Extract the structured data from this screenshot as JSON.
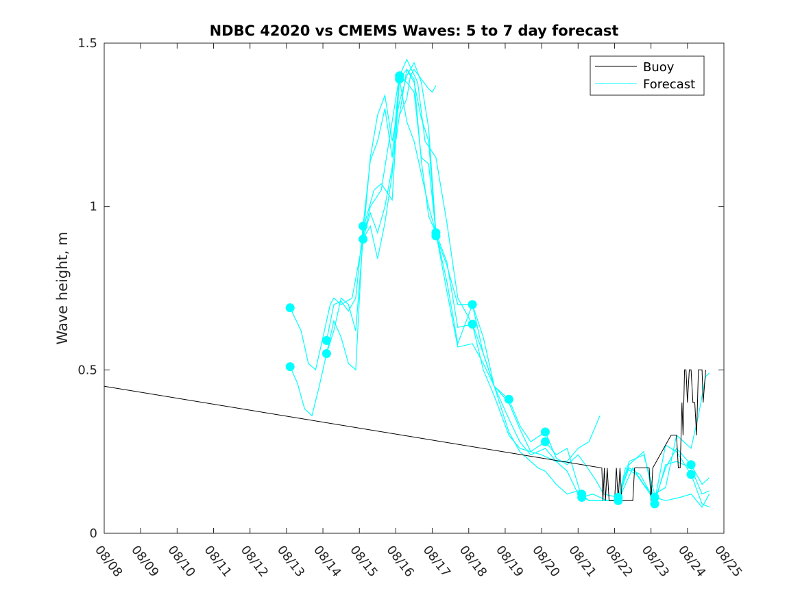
{
  "chart_data": {
    "type": "line",
    "title": "NDBC 42020 vs CMEMS Waves: 5 to 7 day forecast",
    "xlabel": "",
    "ylabel": "Wave height, m",
    "xlim": [
      0,
      17
    ],
    "ylim": [
      0,
      1.5
    ],
    "grid": false,
    "legend_location": "top-right",
    "x_tick_labels": [
      "08/08",
      "08/09",
      "08/10",
      "08/11",
      "08/12",
      "08/13",
      "08/14",
      "08/15",
      "08/16",
      "08/17",
      "08/18",
      "08/19",
      "08/20",
      "08/21",
      "08/22",
      "08/23",
      "08/24",
      "08/25"
    ],
    "y_ticks": [
      0,
      0.5,
      1,
      1.5
    ],
    "y_tick_labels": [
      "0",
      "0.5",
      "1",
      "1.5"
    ],
    "legend": [
      {
        "label": "Buoy",
        "color": "#000000"
      },
      {
        "label": "Forecast",
        "color": "#00ffff"
      }
    ],
    "buoy": {
      "name": "Buoy",
      "color": "#000000",
      "points": [
        [
          0,
          0.45
        ],
        [
          13.65,
          0.2
        ],
        [
          13.68,
          0.1
        ],
        [
          13.72,
          0.2
        ],
        [
          13.75,
          0.1
        ],
        [
          13.8,
          0.2
        ],
        [
          13.85,
          0.1
        ],
        [
          14.0,
          0.1
        ],
        [
          14.05,
          0.2
        ],
        [
          14.1,
          0.1
        ],
        [
          14.15,
          0.2
        ],
        [
          14.2,
          0.1
        ],
        [
          14.5,
          0.1
        ],
        [
          14.55,
          0.2
        ],
        [
          14.95,
          0.2
        ],
        [
          15.0,
          0.1
        ],
        [
          15.05,
          0.2
        ],
        [
          15.55,
          0.3
        ],
        [
          15.7,
          0.3
        ],
        [
          15.75,
          0.2
        ],
        [
          15.8,
          0.2
        ],
        [
          15.85,
          0.4
        ],
        [
          15.88,
          0.3
        ],
        [
          15.92,
          0.5
        ],
        [
          15.96,
          0.5
        ],
        [
          16.0,
          0.4
        ],
        [
          16.05,
          0.5
        ],
        [
          16.1,
          0.5
        ],
        [
          16.15,
          0.4
        ],
        [
          16.2,
          0.4
        ],
        [
          16.25,
          0.3
        ],
        [
          16.3,
          0.5
        ],
        [
          16.4,
          0.5
        ],
        [
          16.43,
          0.4
        ],
        [
          16.5,
          0.5
        ]
      ]
    },
    "forecast": {
      "name": "Forecast",
      "color": "#00ffff",
      "series": [
        {
          "name": "Forecast run 1",
          "points": [
            [
              5.1,
              0.69
            ],
            [
              5.4,
              0.62
            ],
            [
              5.6,
              0.52
            ],
            [
              5.8,
              0.5
            ],
            [
              6.0,
              0.6
            ],
            [
              6.2,
              0.7
            ],
            [
              6.3,
              0.72
            ],
            [
              6.5,
              0.7
            ],
            [
              6.8,
              0.72
            ],
            [
              7.1,
              0.9
            ],
            [
              7.3,
              1.0
            ],
            [
              7.6,
              1.05
            ],
            [
              8.1,
              1.4
            ],
            [
              8.3,
              1.45
            ],
            [
              8.6,
              1.38
            ],
            [
              8.8,
              1.2
            ],
            [
              9.1,
              1.15
            ],
            [
              9.4,
              0.95
            ],
            [
              9.7,
              0.72
            ],
            [
              10.1,
              0.64
            ],
            [
              10.4,
              0.5
            ],
            [
              10.7,
              0.42
            ],
            [
              11.1,
              0.3
            ],
            [
              11.4,
              0.26
            ],
            [
              11.7,
              0.25
            ],
            [
              12.0,
              0.24
            ],
            [
              12.4,
              0.22
            ],
            [
              12.7,
              0.22
            ],
            [
              13.0,
              0.26
            ],
            [
              13.3,
              0.28
            ],
            [
              13.6,
              0.36
            ]
          ]
        },
        {
          "name": "Forecast run 2",
          "points": [
            [
              5.1,
              0.51
            ],
            [
              5.3,
              0.46
            ],
            [
              5.5,
              0.38
            ],
            [
              5.7,
              0.36
            ],
            [
              5.9,
              0.45
            ],
            [
              6.1,
              0.55
            ],
            [
              6.3,
              0.65
            ],
            [
              6.5,
              0.6
            ],
            [
              6.7,
              0.52
            ],
            [
              6.9,
              0.5
            ],
            [
              7.1,
              0.93
            ],
            [
              7.4,
              1.05
            ],
            [
              7.6,
              1.07
            ],
            [
              7.9,
              1.02
            ],
            [
              8.1,
              1.39
            ],
            [
              8.3,
              1.42
            ],
            [
              8.5,
              1.38
            ],
            [
              8.7,
              1.27
            ],
            [
              8.9,
              1.2
            ],
            [
              9.1,
              0.91
            ],
            [
              9.4,
              0.82
            ],
            [
              9.7,
              0.7
            ],
            [
              10.1,
              0.7
            ],
            [
              10.4,
              0.55
            ],
            [
              10.7,
              0.45
            ],
            [
              11.1,
              0.31
            ],
            [
              11.4,
              0.25
            ],
            [
              11.7,
              0.22
            ],
            [
              11.9,
              0.2
            ],
            [
              12.1,
              0.19
            ],
            [
              12.4,
              0.15
            ],
            [
              12.7,
              0.12
            ],
            [
              13.0,
              0.13
            ],
            [
              13.3,
              0.1
            ],
            [
              13.7,
              0.1
            ],
            [
              14.1,
              0.1
            ],
            [
              14.5,
              0.2
            ],
            [
              14.8,
              0.15
            ],
            [
              15.1,
              0.11
            ],
            [
              15.4,
              0.1
            ],
            [
              15.8,
              0.11
            ],
            [
              16.1,
              0.12
            ],
            [
              16.4,
              0.08
            ],
            [
              16.6,
              0.12
            ]
          ]
        },
        {
          "name": "Forecast run 3",
          "points": [
            [
              6.1,
              0.59
            ],
            [
              6.3,
              0.7
            ],
            [
              6.5,
              0.71
            ],
            [
              6.7,
              0.68
            ],
            [
              6.9,
              0.72
            ],
            [
              7.1,
              0.94
            ],
            [
              7.3,
              1.14
            ],
            [
              7.5,
              1.2
            ],
            [
              7.7,
              1.3
            ],
            [
              7.9,
              1.15
            ],
            [
              8.1,
              1.4
            ],
            [
              8.3,
              1.38
            ],
            [
              8.5,
              1.35
            ],
            [
              8.7,
              1.15
            ],
            [
              8.9,
              1.13
            ],
            [
              9.1,
              0.92
            ],
            [
              9.4,
              0.77
            ],
            [
              9.7,
              0.58
            ],
            [
              10.1,
              0.7
            ],
            [
              10.4,
              0.6
            ],
            [
              10.7,
              0.45
            ],
            [
              11.1,
              0.41
            ],
            [
              11.4,
              0.33
            ],
            [
              11.7,
              0.28
            ],
            [
              12.1,
              0.31
            ],
            [
              12.4,
              0.23
            ],
            [
              12.7,
              0.21
            ],
            [
              13.0,
              0.24
            ],
            [
              13.2,
              0.21
            ],
            [
              13.5,
              0.16
            ],
            [
              13.7,
              0.12
            ],
            [
              14.1,
              0.11
            ],
            [
              14.4,
              0.2
            ],
            [
              14.7,
              0.18
            ],
            [
              15.1,
              0.1
            ],
            [
              15.4,
              0.2
            ],
            [
              15.7,
              0.26
            ],
            [
              16.1,
              0.21
            ],
            [
              16.4,
              0.15
            ],
            [
              16.6,
              0.17
            ]
          ]
        },
        {
          "name": "Forecast run 4",
          "points": [
            [
              6.1,
              0.55
            ],
            [
              6.3,
              0.62
            ],
            [
              6.5,
              0.72
            ],
            [
              6.7,
              0.7
            ],
            [
              6.9,
              0.62
            ],
            [
              7.1,
              0.9
            ],
            [
              7.3,
              0.98
            ],
            [
              7.5,
              0.92
            ],
            [
              7.7,
              1.0
            ],
            [
              7.9,
              1.12
            ],
            [
              8.1,
              1.28
            ],
            [
              8.3,
              1.42
            ],
            [
              8.5,
              1.39
            ],
            [
              8.7,
              1.14
            ],
            [
              8.9,
              0.97
            ],
            [
              9.1,
              0.92
            ],
            [
              9.4,
              0.83
            ],
            [
              9.7,
              0.63
            ],
            [
              10.1,
              0.64
            ],
            [
              10.4,
              0.55
            ],
            [
              10.7,
              0.45
            ],
            [
              11.1,
              0.35
            ],
            [
              11.4,
              0.28
            ],
            [
              11.7,
              0.24
            ],
            [
              12.1,
              0.26
            ],
            [
              12.4,
              0.22
            ],
            [
              12.7,
              0.19
            ],
            [
              13.0,
              0.12
            ],
            [
              13.3,
              0.1
            ],
            [
              13.7,
              0.1
            ],
            [
              14.1,
              0.1
            ],
            [
              14.3,
              0.2
            ],
            [
              14.6,
              0.18
            ],
            [
              15.1,
              0.1
            ],
            [
              15.4,
              0.27
            ],
            [
              15.7,
              0.25
            ],
            [
              16.1,
              0.18
            ],
            [
              16.4,
              0.09
            ],
            [
              16.6,
              0.08
            ]
          ]
        },
        {
          "name": "Forecast run 5",
          "points": [
            [
              7.1,
              0.9
            ],
            [
              7.3,
              0.94
            ],
            [
              7.5,
              0.84
            ],
            [
              7.7,
              0.95
            ],
            [
              7.9,
              1.1
            ],
            [
              8.1,
              1.39
            ],
            [
              8.3,
              1.26
            ],
            [
              8.5,
              1.2
            ],
            [
              8.7,
              1.1
            ],
            [
              8.9,
              1.0
            ],
            [
              9.1,
              0.92
            ],
            [
              9.4,
              0.74
            ],
            [
              9.7,
              0.57
            ],
            [
              10.1,
              0.58
            ],
            [
              10.4,
              0.52
            ],
            [
              10.7,
              0.45
            ],
            [
              11.1,
              0.4
            ],
            [
              11.4,
              0.32
            ],
            [
              11.7,
              0.25
            ],
            [
              12.1,
              0.28
            ],
            [
              12.4,
              0.24
            ],
            [
              12.7,
              0.26
            ],
            [
              13.1,
              0.11
            ],
            [
              13.4,
              0.12
            ],
            [
              13.8,
              0.1
            ],
            [
              14.1,
              0.1
            ],
            [
              14.4,
              0.21
            ],
            [
              14.8,
              0.25
            ],
            [
              15.1,
              0.09
            ],
            [
              15.4,
              0.21
            ],
            [
              15.7,
              0.22
            ],
            [
              16.1,
              0.2
            ],
            [
              16.4,
              0.12
            ],
            [
              16.6,
              0.13
            ]
          ]
        },
        {
          "name": "Forecast run 6",
          "points": [
            [
              8.1,
              1.28
            ],
            [
              8.3,
              1.33
            ],
            [
              8.4,
              1.4
            ],
            [
              8.5,
              1.42
            ],
            [
              8.7,
              1.39
            ],
            [
              8.9,
              1.36
            ],
            [
              9.0,
              1.35
            ],
            [
              9.1,
              1.37
            ]
          ]
        },
        {
          "name": "Forecast run 7",
          "points": [
            [
              7.1,
              0.9
            ],
            [
              7.3,
              1.15
            ],
            [
              7.5,
              1.28
            ],
            [
              7.7,
              1.34
            ],
            [
              7.9,
              1.2
            ],
            [
              8.1,
              1.32
            ],
            [
              8.3,
              1.4
            ],
            [
              8.5,
              1.44
            ],
            [
              8.7,
              1.38
            ],
            [
              8.9,
              1.24
            ],
            [
              9.1,
              0.92
            ]
          ]
        },
        {
          "name": "Forecast run 8",
          "points": [
            [
              14.1,
              0.11
            ],
            [
              14.4,
              0.22
            ],
            [
              14.8,
              0.24
            ],
            [
              15.1,
              0.12
            ],
            [
              15.4,
              0.14
            ],
            [
              15.7,
              0.3
            ],
            [
              16.1,
              0.26
            ],
            [
              16.3,
              0.36
            ],
            [
              16.5,
              0.48
            ],
            [
              16.6,
              0.49
            ]
          ]
        }
      ],
      "markers": [
        [
          5.1,
          0.69
        ],
        [
          5.1,
          0.51
        ],
        [
          6.1,
          0.59
        ],
        [
          6.1,
          0.55
        ],
        [
          7.1,
          0.94
        ],
        [
          7.1,
          0.9
        ],
        [
          8.1,
          1.4
        ],
        [
          8.1,
          1.39
        ],
        [
          9.1,
          0.92
        ],
        [
          9.1,
          0.91
        ],
        [
          10.1,
          0.7
        ],
        [
          10.1,
          0.64
        ],
        [
          11.1,
          0.41
        ],
        [
          12.1,
          0.31
        ],
        [
          12.1,
          0.28
        ],
        [
          13.1,
          0.12
        ],
        [
          13.1,
          0.11
        ],
        [
          14.1,
          0.11
        ],
        [
          14.1,
          0.1
        ],
        [
          15.1,
          0.11
        ],
        [
          15.1,
          0.09
        ],
        [
          16.1,
          0.21
        ],
        [
          16.1,
          0.18
        ]
      ]
    }
  }
}
